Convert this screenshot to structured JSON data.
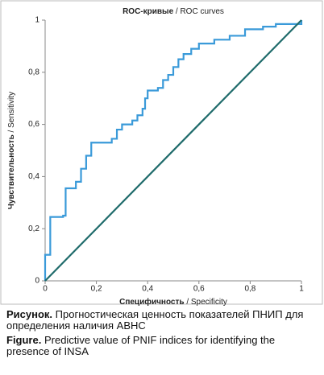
{
  "chart_data": {
    "type": "line",
    "title": [
      "ROC-кривые",
      "/ ROC curves"
    ],
    "xlabel": [
      "Специфичность",
      "/ Specificity"
    ],
    "ylabel": [
      "Чувствительность",
      "/ Sensitivity"
    ],
    "xlim": [
      0,
      1
    ],
    "ylim": [
      0,
      1
    ],
    "xticks": [
      0,
      {
        "value": 0.2,
        "label": "0,2"
      },
      {
        "value": 0.4,
        "label": "0,4"
      },
      {
        "value": 0.6,
        "label": "0,6"
      },
      {
        "value": 0.8,
        "label": "0,8"
      },
      1
    ],
    "yticks": [
      0,
      {
        "value": 0.2,
        "label": "0,2"
      },
      {
        "value": 0.4,
        "label": "0,4"
      },
      {
        "value": 0.6,
        "label": "0,6"
      },
      {
        "value": 0.8,
        "label": "0,8"
      },
      1
    ],
    "series": [
      {
        "color": "#3a9ad9",
        "x": [
          0,
          0,
          0.02,
          0.02,
          0.07,
          0.07,
          0.08,
          0.08,
          0.12,
          0.12,
          0.14,
          0.14,
          0.16,
          0.16,
          0.18,
          0.18,
          0.26,
          0.26,
          0.28,
          0.28,
          0.3,
          0.3,
          0.34,
          0.34,
          0.36,
          0.36,
          0.38,
          0.38,
          0.39,
          0.39,
          0.4,
          0.4,
          0.44,
          0.44,
          0.46,
          0.46,
          0.48,
          0.48,
          0.5,
          0.5,
          0.52,
          0.52,
          0.54,
          0.54,
          0.57,
          0.57,
          0.6,
          0.6,
          0.66,
          0.66,
          0.72,
          0.72,
          0.78,
          0.78,
          0.85,
          0.85,
          0.9,
          0.9,
          1,
          1
        ],
        "y": [
          0,
          0.1,
          0.1,
          0.245,
          0.245,
          0.25,
          0.25,
          0.355,
          0.355,
          0.38,
          0.38,
          0.43,
          0.43,
          0.48,
          0.48,
          0.53,
          0.53,
          0.545,
          0.545,
          0.58,
          0.58,
          0.6,
          0.6,
          0.615,
          0.615,
          0.635,
          0.635,
          0.66,
          0.66,
          0.7,
          0.7,
          0.73,
          0.73,
          0.74,
          0.74,
          0.77,
          0.77,
          0.79,
          0.79,
          0.82,
          0.82,
          0.85,
          0.85,
          0.87,
          0.87,
          0.89,
          0.89,
          0.91,
          0.91,
          0.925,
          0.925,
          0.94,
          0.94,
          0.965,
          0.965,
          0.975,
          0.975,
          0.985,
          0.985,
          1
        ]
      },
      {
        "color": "#1f6b6b",
        "x": [
          0,
          1
        ],
        "y": [
          0,
          1
        ]
      }
    ]
  },
  "caption": [
    {
      "label": "Рисунок.",
      "text": "Прогностическая ценность показателей ПНИП для определения наличия АВНС"
    },
    {
      "label": "Figure.",
      "text": "Predictive value of PNIF indices for identifying the presence of INSA"
    }
  ]
}
